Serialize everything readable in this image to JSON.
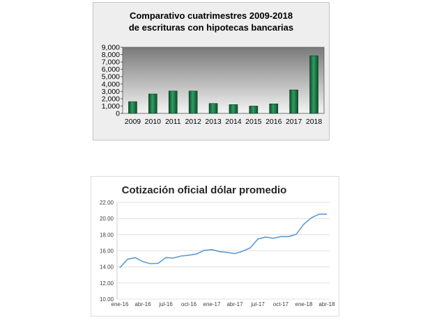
{
  "chart_data": [
    {
      "type": "bar",
      "title_line1": "Comparativo cuatrimestres 2009-2018",
      "title_line2": "de escrituras con hipotecas bancarias",
      "categories": [
        "2009",
        "2010",
        "2011",
        "2012",
        "2013",
        "2014",
        "2015",
        "2016",
        "2017",
        "2018"
      ],
      "values": [
        1600,
        2650,
        3050,
        3050,
        1350,
        1200,
        1000,
        1300,
        3200,
        7850
      ],
      "ylim": [
        0,
        9000
      ],
      "yticks": [
        "0",
        "1,000",
        "2,000",
        "3,000",
        "4,000",
        "5,000",
        "6,000",
        "7,000",
        "8,000",
        "9,000"
      ],
      "legend": "none",
      "colors": {
        "bar": "#1f7a4a",
        "plot_bg_top": "#7a7a7a",
        "plot_bg_bottom": "#f4f4f4"
      }
    },
    {
      "type": "line",
      "title": "Cotización oficial dólar promedio",
      "x_ticks": [
        "ene-16",
        "abr-16",
        "jul-16",
        "oct-16",
        "ene-17",
        "abr-17",
        "jul-17",
        "oct-17",
        "ene-18",
        "abr-18"
      ],
      "values": [
        13.9,
        14.95,
        15.15,
        14.65,
        14.4,
        14.45,
        15.15,
        15.1,
        15.35,
        15.45,
        15.6,
        16.05,
        16.15,
        15.9,
        15.8,
        15.65,
        15.95,
        16.35,
        17.45,
        17.7,
        17.55,
        17.75,
        17.75,
        18.05,
        19.3,
        20.1,
        20.55,
        20.55
      ],
      "ylim": [
        10,
        22
      ],
      "yticks": [
        "10.00",
        "12.00",
        "14.00",
        "16.00",
        "18.00",
        "20.00",
        "22.00"
      ],
      "grid": true,
      "legend": "none",
      "colors": {
        "line": "#5b9bd5",
        "grid": "#d9d9d9"
      }
    }
  ]
}
